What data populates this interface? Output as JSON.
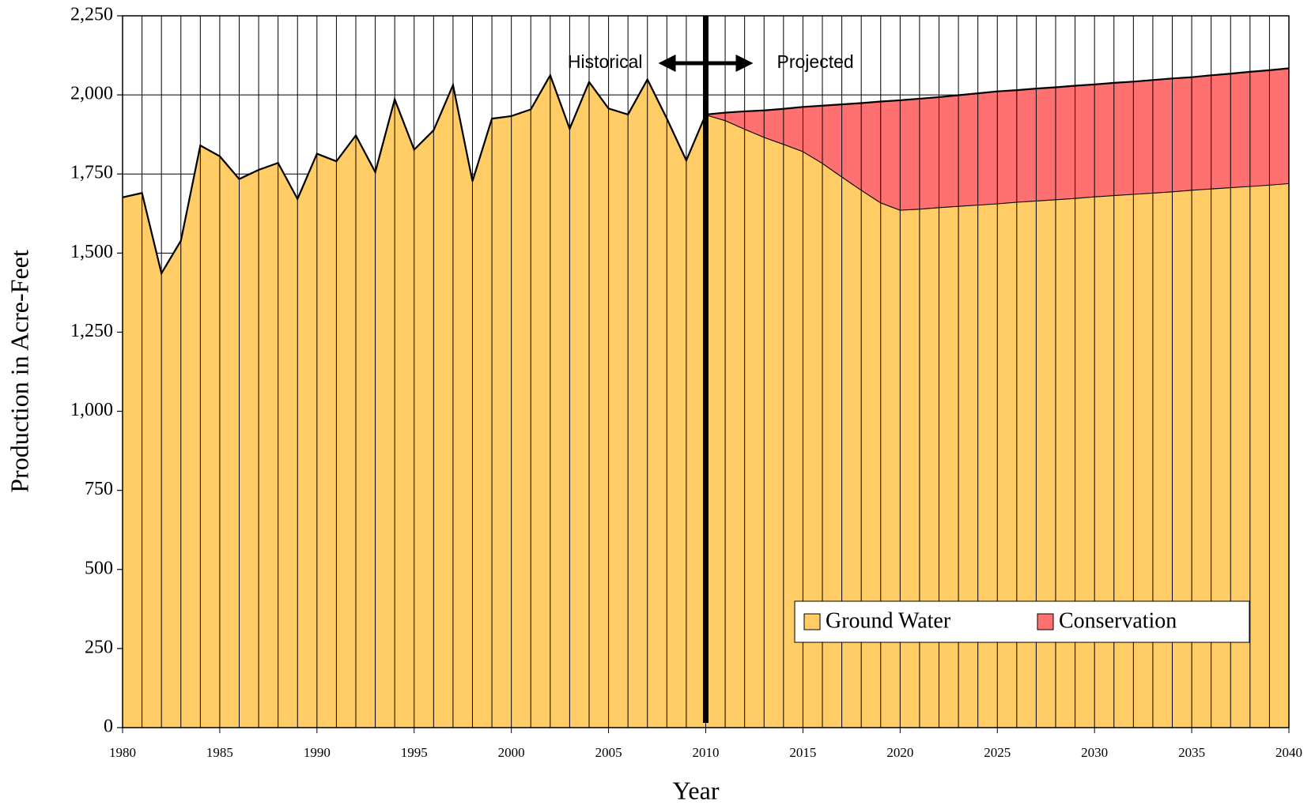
{
  "chart_data": {
    "type": "stacked_area",
    "x_label": "Year",
    "y_label": "Production in Acre-Feet",
    "x": [
      1980,
      1981,
      1982,
      1983,
      1984,
      1985,
      1986,
      1987,
      1988,
      1989,
      1990,
      1991,
      1992,
      1993,
      1994,
      1995,
      1996,
      1997,
      1998,
      1999,
      2000,
      2001,
      2002,
      2003,
      2004,
      2005,
      2006,
      2007,
      2008,
      2009,
      2010,
      2011,
      2012,
      2013,
      2014,
      2015,
      2016,
      2017,
      2018,
      2019,
      2020,
      2021,
      2022,
      2023,
      2024,
      2025,
      2026,
      2027,
      2028,
      2029,
      2030,
      2031,
      2032,
      2033,
      2034,
      2035,
      2036,
      2037,
      2038,
      2039,
      2040
    ],
    "series": [
      {
        "name": "Ground Water",
        "color": "#ffcc66",
        "values": [
          1676,
          1690,
          1436,
          1539,
          1840,
          1806,
          1734,
          1763,
          1785,
          1671,
          1814,
          1790,
          1872,
          1756,
          1986,
          1827,
          1888,
          2031,
          1727,
          1925,
          1933,
          1954,
          2062,
          1893,
          2041,
          1957,
          1938,
          2049,
          1925,
          1793,
          1938,
          1920,
          1893,
          1867,
          1845,
          1822,
          1785,
          1742,
          1700,
          1660,
          1637,
          1640,
          1645,
          1649,
          1653,
          1657,
          1662,
          1666,
          1670,
          1674,
          1679,
          1683,
          1687,
          1691,
          1695,
          1700,
          1704,
          1708,
          1712,
          1716,
          1721
        ]
      },
      {
        "name": "Conservation",
        "color": "#ff7070",
        "values": [
          null,
          null,
          null,
          null,
          null,
          null,
          null,
          null,
          null,
          null,
          null,
          null,
          null,
          null,
          null,
          null,
          null,
          null,
          null,
          null,
          null,
          null,
          null,
          null,
          null,
          null,
          null,
          null,
          null,
          null,
          0,
          24,
          55,
          84,
          111,
          140,
          181,
          228,
          274,
          319,
          346,
          348,
          348,
          350,
          352,
          354,
          353,
          354,
          354,
          355,
          354,
          355,
          355,
          356,
          357,
          356,
          358,
          359,
          361,
          362,
          363
        ]
      }
    ],
    "xlim": [
      1980,
      2040
    ],
    "xticks": [
      1980,
      1985,
      1990,
      1995,
      2000,
      2005,
      2010,
      2015,
      2020,
      2025,
      2030,
      2035,
      2040
    ],
    "ylim": [
      0,
      2250
    ],
    "yticks": [
      0,
      250,
      500,
      750,
      {
        "value": 1000,
        "label": "1,000"
      },
      {
        "value": 1250,
        "label": "1,250"
      },
      {
        "value": 1500,
        "label": "1,500"
      },
      {
        "value": 1750,
        "label": "1,750"
      },
      {
        "value": 2000,
        "label": "2,000"
      },
      {
        "value": 2250,
        "label": "2,250"
      }
    ],
    "grid": true,
    "legend": "lower right",
    "divider_x": 2010,
    "annotations": [
      "Historical",
      "Projected"
    ]
  }
}
